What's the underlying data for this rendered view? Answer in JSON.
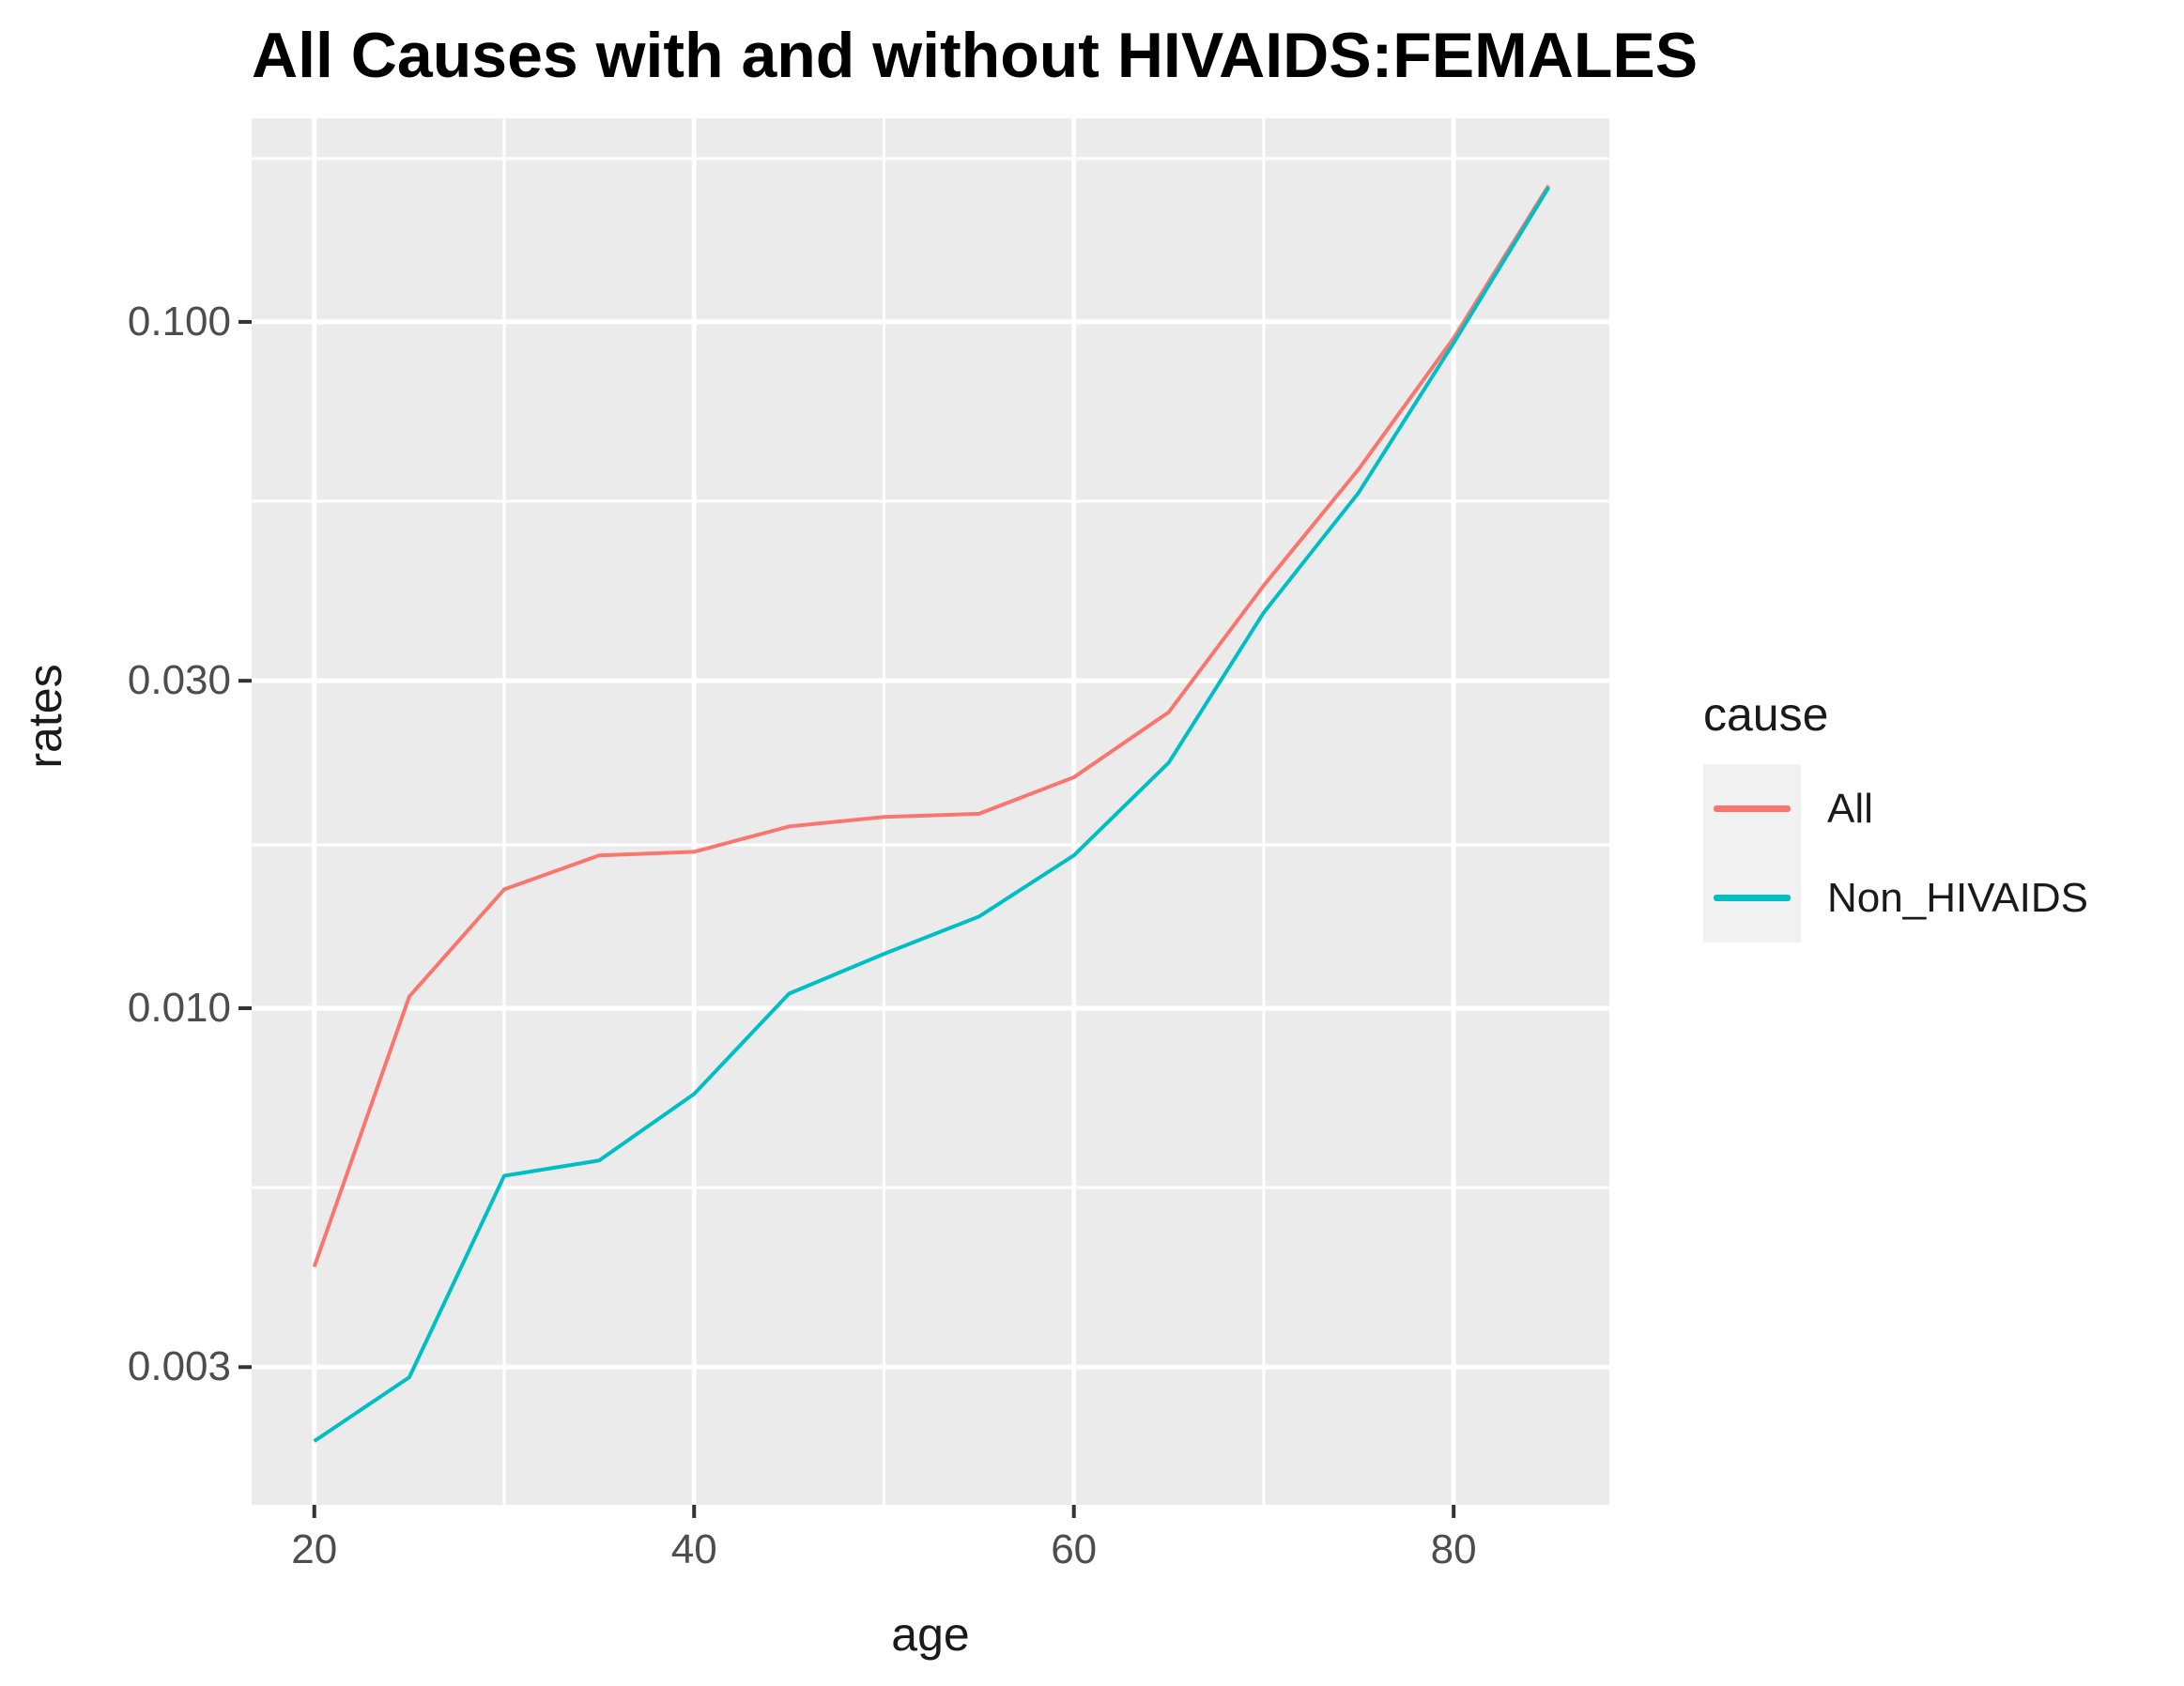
{
  "chart_data": {
    "type": "line",
    "title": "All Causes with and without HIVAIDS:FEMALES",
    "xlabel": "age",
    "ylabel": "rates",
    "x": [
      20,
      25,
      30,
      35,
      40,
      45,
      50,
      55,
      60,
      65,
      70,
      75,
      80,
      85
    ],
    "series": [
      {
        "name": "All",
        "color": "#F8766D",
        "values": [
          0.0042,
          0.0104,
          0.0149,
          0.0167,
          0.0169,
          0.0184,
          0.019,
          0.0192,
          0.0217,
          0.027,
          0.0413,
          0.061,
          0.0947,
          0.158
        ]
      },
      {
        "name": "Non_HIVAIDS",
        "color": "#00BFC4",
        "values": [
          0.00234,
          0.0029,
          0.0057,
          0.006,
          0.0075,
          0.0105,
          0.012,
          0.0136,
          0.0167,
          0.0228,
          0.0377,
          0.0564,
          0.0932,
          0.157
        ]
      }
    ],
    "x_ticks": [
      20,
      40,
      60,
      80
    ],
    "x_tick_labels": [
      "20",
      "40",
      "60",
      "80"
    ],
    "x_minor_ticks": [
      30,
      50,
      70
    ],
    "y_scale": "log10",
    "y_ticks": [
      0.1,
      0.03,
      0.01,
      0.003
    ],
    "y_tick_labels": [
      "0.100",
      "0.030",
      "0.010",
      "0.003"
    ],
    "y_minor_ticks": [
      0.173,
      0.0548,
      0.0173,
      0.00548
    ],
    "x_range": [
      16.7,
      88.2
    ],
    "y_range": [
      0.00189,
      0.198
    ],
    "grid": "on",
    "legend": {
      "title": "cause",
      "position": "right",
      "entries": [
        "All",
        "Non_HIVAIDS"
      ]
    },
    "colors": {
      "panel_bg": "#EBEBEB",
      "grid": "#FFFFFF",
      "legend_key_bg": "#F1F1F1",
      "tick_text": "#4D4D4D",
      "title_text": "#000000",
      "tick_mark": "#333333"
    }
  }
}
